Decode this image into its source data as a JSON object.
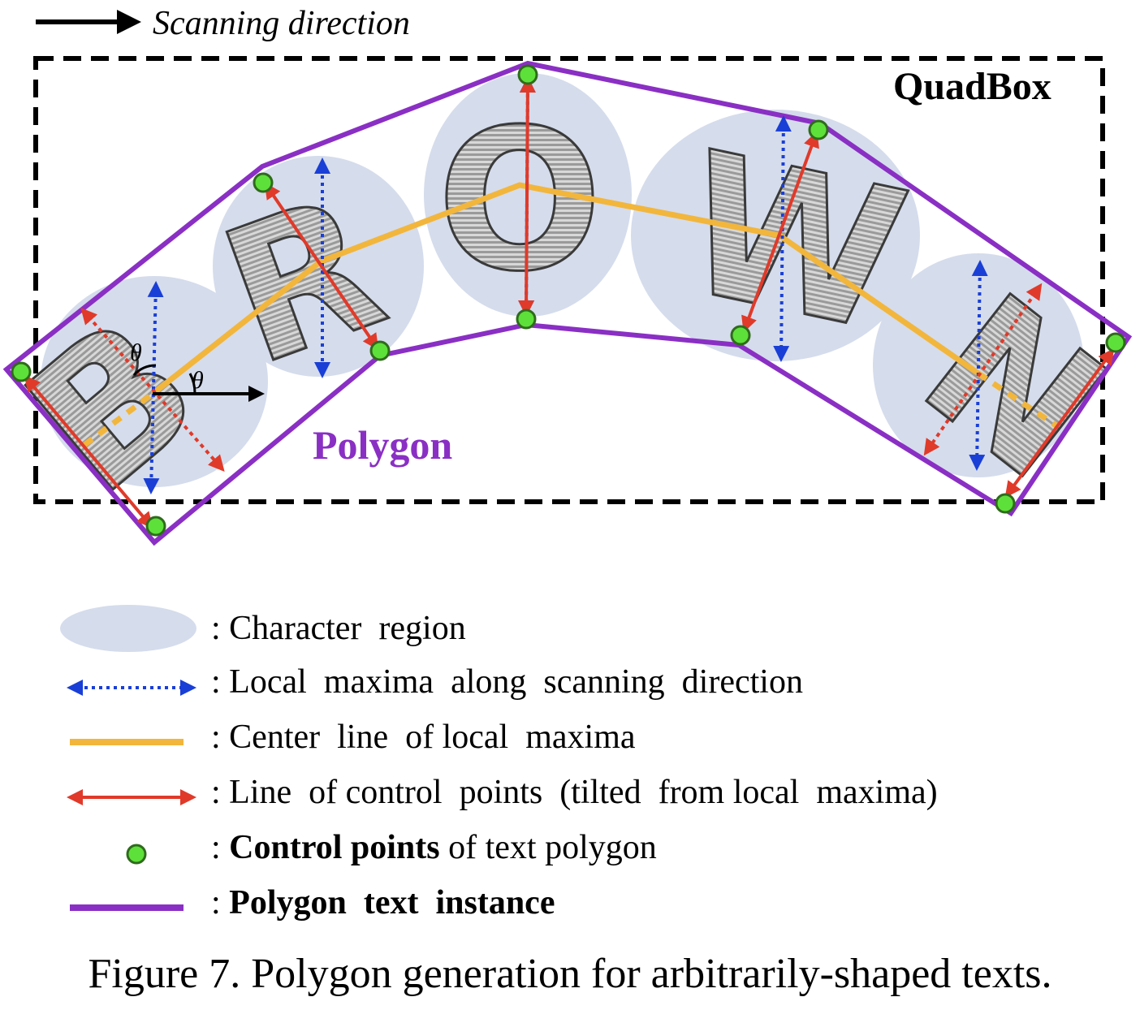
{
  "diagram": {
    "scanning_direction_label": "Scanning direction",
    "quadbox_label": "QuadBox",
    "polygon_label": "Polygon",
    "letters": [
      "B",
      "R",
      "O",
      "W",
      "N"
    ],
    "angle_symbol": "θ",
    "colors": {
      "character_region": "#d5dcec",
      "local_maxima": "#1a3fd6",
      "center_line": "#f2b63c",
      "control_line": "#e03a2a",
      "control_point_fill": "#5ee03a",
      "control_point_stroke": "#2f6b1c",
      "polygon": "#8a2fc4",
      "quadbox": "#000000"
    }
  },
  "legend": {
    "items": [
      {
        "prefix": ": ",
        "bold": "",
        "text": "Character  region"
      },
      {
        "prefix": ": ",
        "bold": "",
        "text": "Local  maxima  along  scanning  direction"
      },
      {
        "prefix": ": ",
        "bold": "",
        "text": "Center  line  of local  maxima"
      },
      {
        "prefix": ": ",
        "bold": "",
        "text": "Line  of control  points  (tilted  from local  maxima)"
      },
      {
        "prefix": ": ",
        "bold": "Control points",
        "text": " of text polygon"
      },
      {
        "prefix": ": ",
        "bold": "Polygon  text  instance",
        "text": ""
      }
    ]
  },
  "caption": "Figure 7. Polygon generation for arbitrarily-shaped texts."
}
